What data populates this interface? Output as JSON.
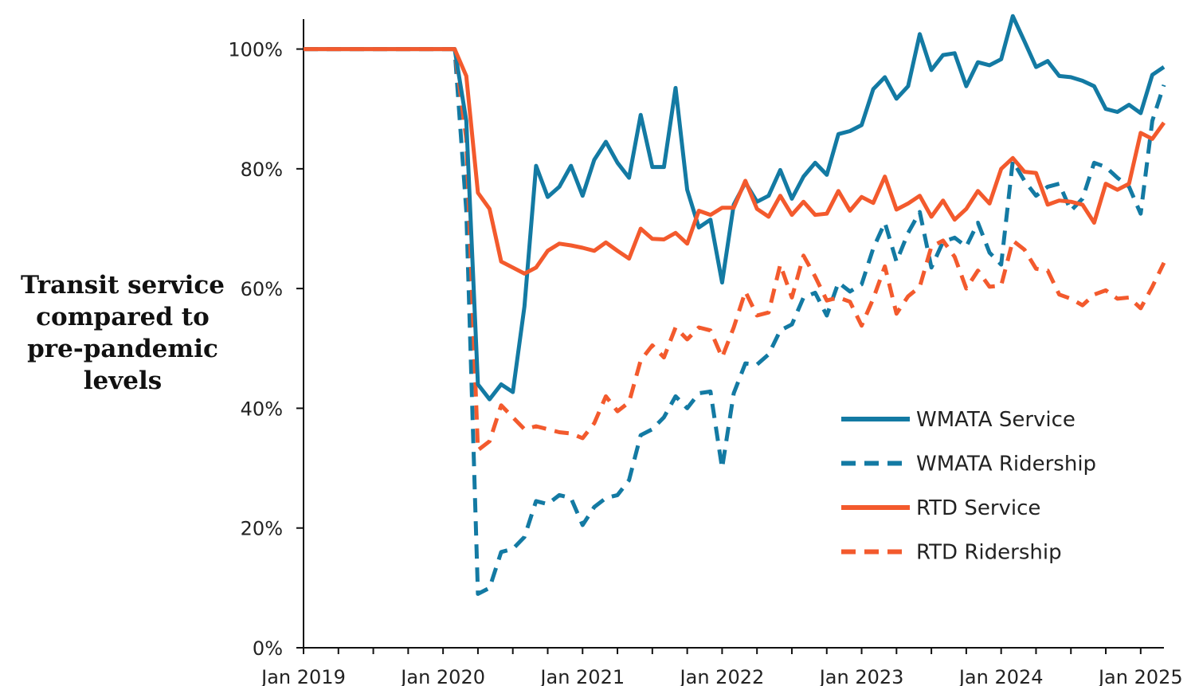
{
  "chart_data": {
    "type": "line",
    "ylabel": [
      "Transit service",
      "compared to",
      "pre-pandemic",
      "levels"
    ],
    "xlabel": "",
    "title": "",
    "x_start": "2019-01",
    "x_end": "2025-03",
    "x_tick_labels": [
      "Jan 2019",
      "Jan 2020",
      "Jan 2021",
      "Jan 2022",
      "Jan 2023",
      "Jan 2024",
      "Jan 2025"
    ],
    "y_tick_labels": [
      "0%",
      "20%",
      "40%",
      "60%",
      "80%",
      "100%"
    ],
    "y_ticks": [
      0,
      20,
      40,
      60,
      80,
      100
    ],
    "ylim": [
      0,
      105
    ],
    "grid": false,
    "legend_position": "bottom-right",
    "colors": {
      "wmata": "#137aa3",
      "rtd": "#f35a2d"
    },
    "series": [
      {
        "name": "WMATA Service",
        "color": "#137aa3",
        "style": "solid",
        "points": [
          [
            "2019-01",
            100
          ],
          [
            "2020-02",
            100
          ],
          [
            "2020-03",
            88
          ],
          [
            "2020-04",
            44
          ],
          [
            "2020-05",
            41.5
          ],
          [
            "2020-06",
            44
          ],
          [
            "2020-07",
            42.7
          ],
          [
            "2020-08",
            57
          ],
          [
            "2020-09",
            80.5
          ],
          [
            "2020-10",
            75.3
          ],
          [
            "2020-11",
            77
          ],
          [
            "2020-12",
            80.5
          ],
          [
            "2021-01",
            75.5
          ],
          [
            "2021-02",
            81.5
          ],
          [
            "2021-03",
            84.5
          ],
          [
            "2021-04",
            81
          ],
          [
            "2021-05",
            78.5
          ],
          [
            "2021-06",
            89
          ],
          [
            "2021-07",
            80.3
          ],
          [
            "2021-08",
            80.3
          ],
          [
            "2021-09",
            93.5
          ],
          [
            "2021-10",
            76.5
          ],
          [
            "2021-11",
            70.2
          ],
          [
            "2021-12",
            71.5
          ],
          [
            "2022-01",
            61
          ],
          [
            "2022-02",
            74
          ],
          [
            "2022-03",
            77.7
          ],
          [
            "2022-04",
            74.5
          ],
          [
            "2022-05",
            75.5
          ],
          [
            "2022-06",
            79.8
          ],
          [
            "2022-07",
            75
          ],
          [
            "2022-08",
            78.7
          ],
          [
            "2022-09",
            81
          ],
          [
            "2022-10",
            79
          ],
          [
            "2022-11",
            85.8
          ],
          [
            "2022-12",
            86.3
          ],
          [
            "2023-01",
            87.3
          ],
          [
            "2023-02",
            93.3
          ],
          [
            "2023-03",
            95.3
          ],
          [
            "2023-04",
            91.7
          ],
          [
            "2023-05",
            93.8
          ],
          [
            "2023-06",
            102.5
          ],
          [
            "2023-07",
            96.5
          ],
          [
            "2023-08",
            99
          ],
          [
            "2023-09",
            99.3
          ],
          [
            "2023-10",
            93.8
          ],
          [
            "2023-11",
            97.8
          ],
          [
            "2023-12",
            97.3
          ],
          [
            "2024-01",
            98.3
          ],
          [
            "2024-02",
            105.5
          ],
          [
            "2024-03",
            101.3
          ],
          [
            "2024-04",
            97
          ],
          [
            "2024-05",
            98
          ],
          [
            "2024-06",
            95.5
          ],
          [
            "2024-07",
            95.3
          ],
          [
            "2024-08",
            94.7
          ],
          [
            "2024-09",
            93.8
          ],
          [
            "2024-10",
            90
          ],
          [
            "2024-11",
            89.5
          ],
          [
            "2024-12",
            90.7
          ],
          [
            "2025-01",
            89.3
          ],
          [
            "2025-02",
            95.7
          ],
          [
            "2025-03",
            97
          ]
        ]
      },
      {
        "name": "WMATA Ridership",
        "color": "#137aa3",
        "style": "dashed",
        "points": [
          [
            "2019-01",
            100
          ],
          [
            "2020-02",
            100
          ],
          [
            "2020-03",
            73
          ],
          [
            "2020-04",
            9
          ],
          [
            "2020-05",
            10
          ],
          [
            "2020-06",
            16
          ],
          [
            "2020-07",
            16.5
          ],
          [
            "2020-08",
            18.5
          ],
          [
            "2020-09",
            24.5
          ],
          [
            "2020-10",
            24
          ],
          [
            "2020-11",
            25.5
          ],
          [
            "2020-12",
            25
          ],
          [
            "2021-01",
            20.5
          ],
          [
            "2021-02",
            23.5
          ],
          [
            "2021-03",
            25
          ],
          [
            "2021-04",
            25.5
          ],
          [
            "2021-05",
            28
          ],
          [
            "2021-06",
            35.5
          ],
          [
            "2021-07",
            36.5
          ],
          [
            "2021-08",
            38.5
          ],
          [
            "2021-09",
            42
          ],
          [
            "2021-10",
            40
          ],
          [
            "2021-11",
            42.5
          ],
          [
            "2021-12",
            42.8
          ],
          [
            "2022-01",
            30
          ],
          [
            "2022-02",
            42.5
          ],
          [
            "2022-03",
            47.5
          ],
          [
            "2022-04",
            47.3
          ],
          [
            "2022-05",
            49
          ],
          [
            "2022-06",
            53
          ],
          [
            "2022-07",
            54
          ],
          [
            "2022-08",
            58.5
          ],
          [
            "2022-09",
            59.3
          ],
          [
            "2022-10",
            55.5
          ],
          [
            "2022-11",
            61
          ],
          [
            "2022-12",
            59.5
          ],
          [
            "2023-01",
            60.7
          ],
          [
            "2023-02",
            66.7
          ],
          [
            "2023-03",
            71
          ],
          [
            "2023-04",
            64.5
          ],
          [
            "2023-05",
            69.3
          ],
          [
            "2023-06",
            72.8
          ],
          [
            "2023-07",
            63.5
          ],
          [
            "2023-08",
            67.8
          ],
          [
            "2023-09",
            68.5
          ],
          [
            "2023-10",
            67
          ],
          [
            "2023-11",
            71
          ],
          [
            "2023-12",
            66
          ],
          [
            "2024-01",
            64
          ],
          [
            "2024-02",
            81.3
          ],
          [
            "2024-03",
            78
          ],
          [
            "2024-04",
            75.5
          ],
          [
            "2024-05",
            77
          ],
          [
            "2024-06",
            77.5
          ],
          [
            "2024-07",
            73
          ],
          [
            "2024-08",
            75
          ],
          [
            "2024-09",
            81
          ],
          [
            "2024-10",
            80.3
          ],
          [
            "2024-11",
            78.5
          ],
          [
            "2024-12",
            77
          ],
          [
            "2025-01",
            72.5
          ],
          [
            "2025-02",
            88
          ],
          [
            "2025-03",
            94
          ]
        ]
      },
      {
        "name": "RTD Service",
        "color": "#f35a2d",
        "style": "solid",
        "points": [
          [
            "2019-01",
            100
          ],
          [
            "2020-02",
            100
          ],
          [
            "2020-03",
            95.5
          ],
          [
            "2020-04",
            76
          ],
          [
            "2020-05",
            73.3
          ],
          [
            "2020-06",
            64.5
          ],
          [
            "2020-07",
            63.5
          ],
          [
            "2020-08",
            62.5
          ],
          [
            "2020-09",
            63.5
          ],
          [
            "2020-10",
            66.3
          ],
          [
            "2020-11",
            67.5
          ],
          [
            "2020-12",
            67.2
          ],
          [
            "2021-01",
            66.8
          ],
          [
            "2021-02",
            66.3
          ],
          [
            "2021-03",
            67.7
          ],
          [
            "2021-04",
            66.3
          ],
          [
            "2021-05",
            65
          ],
          [
            "2021-06",
            70
          ],
          [
            "2021-07",
            68.3
          ],
          [
            "2021-08",
            68.2
          ],
          [
            "2021-09",
            69.3
          ],
          [
            "2021-10",
            67.5
          ],
          [
            "2021-11",
            73
          ],
          [
            "2021-12",
            72.3
          ],
          [
            "2022-01",
            73.5
          ],
          [
            "2022-02",
            73.5
          ],
          [
            "2022-03",
            78
          ],
          [
            "2022-04",
            73.3
          ],
          [
            "2022-05",
            72
          ],
          [
            "2022-06",
            75.5
          ],
          [
            "2022-07",
            72.3
          ],
          [
            "2022-08",
            74.5
          ],
          [
            "2022-09",
            72.3
          ],
          [
            "2022-10",
            72.5
          ],
          [
            "2022-11",
            76.3
          ],
          [
            "2022-12",
            73
          ],
          [
            "2023-01",
            75.3
          ],
          [
            "2023-02",
            74.3
          ],
          [
            "2023-03",
            78.7
          ],
          [
            "2023-04",
            73.2
          ],
          [
            "2023-05",
            74.2
          ],
          [
            "2023-06",
            75.5
          ],
          [
            "2023-07",
            72
          ],
          [
            "2023-08",
            74.7
          ],
          [
            "2023-09",
            71.5
          ],
          [
            "2023-10",
            73.3
          ],
          [
            "2023-11",
            76.3
          ],
          [
            "2023-12",
            74.2
          ],
          [
            "2024-01",
            80
          ],
          [
            "2024-02",
            81.8
          ],
          [
            "2024-03",
            79.5
          ],
          [
            "2024-04",
            79.3
          ],
          [
            "2024-05",
            74
          ],
          [
            "2024-06",
            74.7
          ],
          [
            "2024-07",
            74.5
          ],
          [
            "2024-08",
            74
          ],
          [
            "2024-09",
            71
          ],
          [
            "2024-10",
            77.5
          ],
          [
            "2024-11",
            76.5
          ],
          [
            "2024-12",
            77.5
          ],
          [
            "2025-01",
            86
          ],
          [
            "2025-02",
            85
          ],
          [
            "2025-03",
            87.7
          ]
        ]
      },
      {
        "name": "RTD Ridership",
        "color": "#f35a2d",
        "style": "dashed",
        "points": [
          [
            "2019-01",
            100
          ],
          [
            "2020-02",
            100
          ],
          [
            "2020-03",
            85
          ],
          [
            "2020-04",
            33
          ],
          [
            "2020-05",
            34.5
          ],
          [
            "2020-06",
            40.5
          ],
          [
            "2020-07",
            38.5
          ],
          [
            "2020-08",
            36.5
          ],
          [
            "2020-09",
            37
          ],
          [
            "2020-10",
            36.5
          ],
          [
            "2020-11",
            36
          ],
          [
            "2020-12",
            35.8
          ],
          [
            "2021-01",
            35
          ],
          [
            "2021-02",
            37.5
          ],
          [
            "2021-03",
            42
          ],
          [
            "2021-04",
            39.5
          ],
          [
            "2021-05",
            41
          ],
          [
            "2021-06",
            48
          ],
          [
            "2021-07",
            50.5
          ],
          [
            "2021-08",
            48.5
          ],
          [
            "2021-09",
            53.5
          ],
          [
            "2021-10",
            51.5
          ],
          [
            "2021-11",
            53.5
          ],
          [
            "2021-12",
            53
          ],
          [
            "2022-01",
            48.5
          ],
          [
            "2022-02",
            53.5
          ],
          [
            "2022-03",
            59.5
          ],
          [
            "2022-04",
            55.5
          ],
          [
            "2022-05",
            56
          ],
          [
            "2022-06",
            64
          ],
          [
            "2022-07",
            58.5
          ],
          [
            "2022-08",
            65.5
          ],
          [
            "2022-09",
            62
          ],
          [
            "2022-10",
            58
          ],
          [
            "2022-11",
            58.5
          ],
          [
            "2022-12",
            57.8
          ],
          [
            "2023-01",
            53.8
          ],
          [
            "2023-02",
            58.3
          ],
          [
            "2023-03",
            63.7
          ],
          [
            "2023-04",
            55.8
          ],
          [
            "2023-05",
            58.7
          ],
          [
            "2023-06",
            60.3
          ],
          [
            "2023-07",
            67
          ],
          [
            "2023-08",
            68
          ],
          [
            "2023-09",
            65.3
          ],
          [
            "2023-10",
            60
          ],
          [
            "2023-11",
            63
          ],
          [
            "2023-12",
            60.3
          ],
          [
            "2024-01",
            60.5
          ],
          [
            "2024-02",
            68
          ],
          [
            "2024-03",
            66.5
          ],
          [
            "2024-04",
            63.3
          ],
          [
            "2024-05",
            63
          ],
          [
            "2024-06",
            59
          ],
          [
            "2024-07",
            58.3
          ],
          [
            "2024-08",
            57.2
          ],
          [
            "2024-09",
            59
          ],
          [
            "2024-10",
            59.7
          ],
          [
            "2024-11",
            58.3
          ],
          [
            "2024-12",
            58.5
          ],
          [
            "2025-01",
            56.7
          ],
          [
            "2025-02",
            60.3
          ],
          [
            "2025-03",
            64.3
          ]
        ]
      }
    ]
  }
}
